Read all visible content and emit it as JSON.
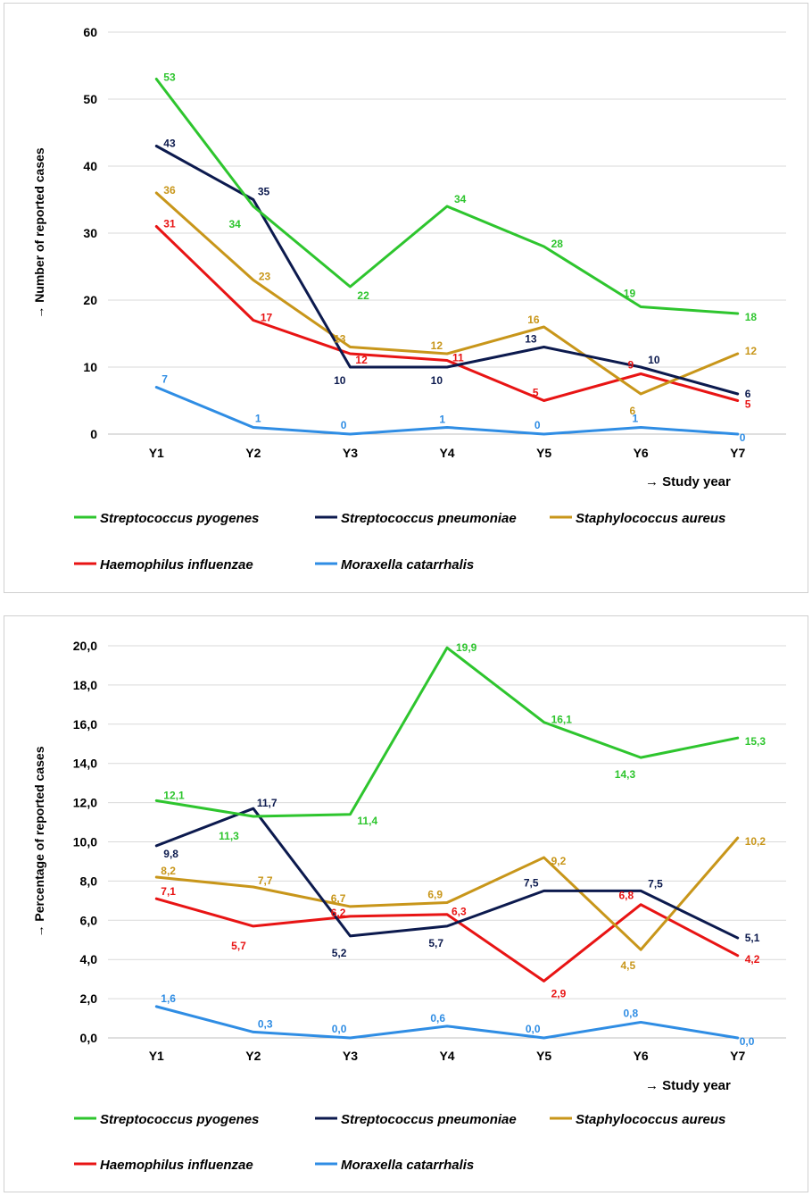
{
  "colors": {
    "pyogenes": "#2ec52e",
    "pneumoniae": "#0c1a4e",
    "aureus": "#c8961a",
    "influenzae": "#e81414",
    "catarrhalis": "#2f8de4",
    "grid": "#d9d9d9"
  },
  "chart_data": [
    {
      "type": "line",
      "title": "",
      "xlabel": "→ Study year",
      "ylabel": "→ Number of reported cases",
      "categories": [
        "Y1",
        "Y2",
        "Y3",
        "Y4",
        "Y5",
        "Y6",
        "Y7"
      ],
      "ylim": [
        0,
        60
      ],
      "yticks": [
        "0",
        "10",
        "20",
        "30",
        "40",
        "50",
        "60"
      ],
      "ytick_values": [
        0,
        10,
        20,
        30,
        40,
        50,
        60
      ],
      "grid": true,
      "legend_position": "bottom",
      "series": [
        {
          "key": "pyogenes",
          "name": "Streptococcus pyogenes",
          "values": [
            53,
            34,
            22,
            34,
            28,
            19,
            18
          ],
          "labels": [
            "53",
            "34",
            "22",
            "34",
            "28",
            "19",
            "18"
          ]
        },
        {
          "key": "pneumoniae",
          "name": "Streptococcus pneumoniae",
          "values": [
            43,
            35,
            10,
            10,
            13,
            10,
            6
          ],
          "labels": [
            "43",
            "35",
            "10",
            "10",
            "13",
            "10",
            "6"
          ]
        },
        {
          "key": "aureus",
          "name": "Staphylococcus aureus",
          "values": [
            36,
            23,
            13,
            12,
            16,
            6,
            12
          ],
          "labels": [
            "36",
            "23",
            "13",
            "12",
            "16",
            "6",
            "12"
          ]
        },
        {
          "key": "influenzae",
          "name": "Haemophilus influenzae",
          "values": [
            31,
            17,
            12,
            11,
            5,
            9,
            5
          ],
          "labels": [
            "31",
            "17",
            "12",
            "11",
            "5",
            "9",
            "5"
          ]
        },
        {
          "key": "catarrhalis",
          "name": "Moraxella catarrhalis",
          "values": [
            7,
            1,
            0,
            1,
            0,
            1,
            0
          ],
          "labels": [
            "7",
            "1",
            "0",
            "1",
            "0",
            "1",
            "0"
          ]
        }
      ]
    },
    {
      "type": "line",
      "title": "",
      "xlabel": "→ Study year",
      "ylabel": "→ Percentage of reported cases",
      "categories": [
        "Y1",
        "Y2",
        "Y3",
        "Y4",
        "Y5",
        "Y6",
        "Y7"
      ],
      "ylim": [
        0,
        20
      ],
      "yticks": [
        "0,0",
        "2,0",
        "4,0",
        "6,0",
        "8,0",
        "10,0",
        "12,0",
        "14,0",
        "16,0",
        "18,0",
        "20,0"
      ],
      "ytick_values": [
        0,
        2,
        4,
        6,
        8,
        10,
        12,
        14,
        16,
        18,
        20
      ],
      "grid": true,
      "legend_position": "bottom",
      "series": [
        {
          "key": "pyogenes",
          "name": "Streptococcus pyogenes",
          "values": [
            12.1,
            11.3,
            11.4,
            19.9,
            16.1,
            14.3,
            15.3
          ],
          "labels": [
            "12,1",
            "11,3",
            "11,4",
            "19,9",
            "16,1",
            "14,3",
            "15,3"
          ]
        },
        {
          "key": "pneumoniae",
          "name": "Streptococcus pneumoniae",
          "values": [
            9.8,
            11.7,
            5.2,
            5.7,
            7.5,
            7.5,
            5.1
          ],
          "labels": [
            "9,8",
            "11,7",
            "5,2",
            "5,7",
            "7,5",
            "7,5",
            "5,1"
          ]
        },
        {
          "key": "aureus",
          "name": "Staphylococcus aureus",
          "values": [
            8.2,
            7.7,
            6.7,
            6.9,
            9.2,
            4.5,
            10.2
          ],
          "labels": [
            "8,2",
            "7,7",
            "6,7",
            "6,9",
            "9,2",
            "4,5",
            "10,2"
          ]
        },
        {
          "key": "influenzae",
          "name": "Haemophilus influenzae",
          "values": [
            7.1,
            5.7,
            6.2,
            6.3,
            2.9,
            6.8,
            4.2
          ],
          "labels": [
            "7,1",
            "5,7",
            "6,2",
            "6,3",
            "2,9",
            "6,8",
            "4,2"
          ]
        },
        {
          "key": "catarrhalis",
          "name": "Moraxella catarrhalis",
          "values": [
            1.6,
            0.3,
            0.0,
            0.6,
            0.0,
            0.8,
            0.0
          ],
          "labels": [
            "1,6",
            "0,3",
            "0,0",
            "0,6",
            "0,0",
            "0,8",
            "0,0"
          ]
        }
      ]
    }
  ]
}
